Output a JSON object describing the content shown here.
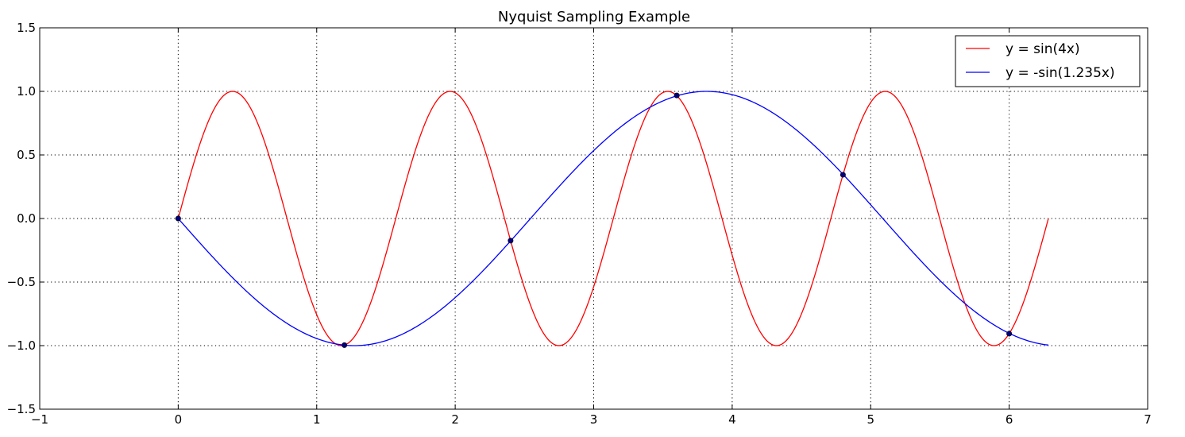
{
  "chart_data": {
    "type": "line",
    "title": "Nyquist Sampling Example",
    "xlabel": "",
    "ylabel": "",
    "xlim": [
      -1,
      7
    ],
    "ylim": [
      -1.5,
      1.5
    ],
    "x_ticks": [
      -1,
      0,
      1,
      2,
      3,
      4,
      5,
      6,
      7
    ],
    "x_tick_labels": [
      "−1",
      "0",
      "1",
      "2",
      "3",
      "4",
      "5",
      "6",
      "7"
    ],
    "y_ticks": [
      1.5,
      1.0,
      0.5,
      0.0,
      -0.5,
      -1.0,
      -1.5
    ],
    "y_tick_labels": [
      "1.5",
      "1.0",
      "0.5",
      "0.0",
      "−0.5",
      "−1.0",
      "−1.5"
    ],
    "grid": true,
    "legend_position": "top-right",
    "x_range": [
      0,
      6.2832
    ],
    "series": [
      {
        "name": "y = sin(4x)",
        "color": "#ff0000",
        "frequency": 4,
        "amplitude": 1,
        "expression": "sin(4x)"
      },
      {
        "name": "y = -sin(1.235x)",
        "color": "#0000ff",
        "frequency": 1.235,
        "amplitude": -1,
        "expression": "-sin(1.235x)"
      }
    ],
    "sample_points": {
      "color": "#000080",
      "x": [
        0,
        1.2,
        2.4,
        3.6,
        4.8,
        6.0
      ],
      "y": [
        0.0,
        -0.996,
        -0.174,
        0.968,
        0.344,
        -0.906
      ]
    }
  }
}
